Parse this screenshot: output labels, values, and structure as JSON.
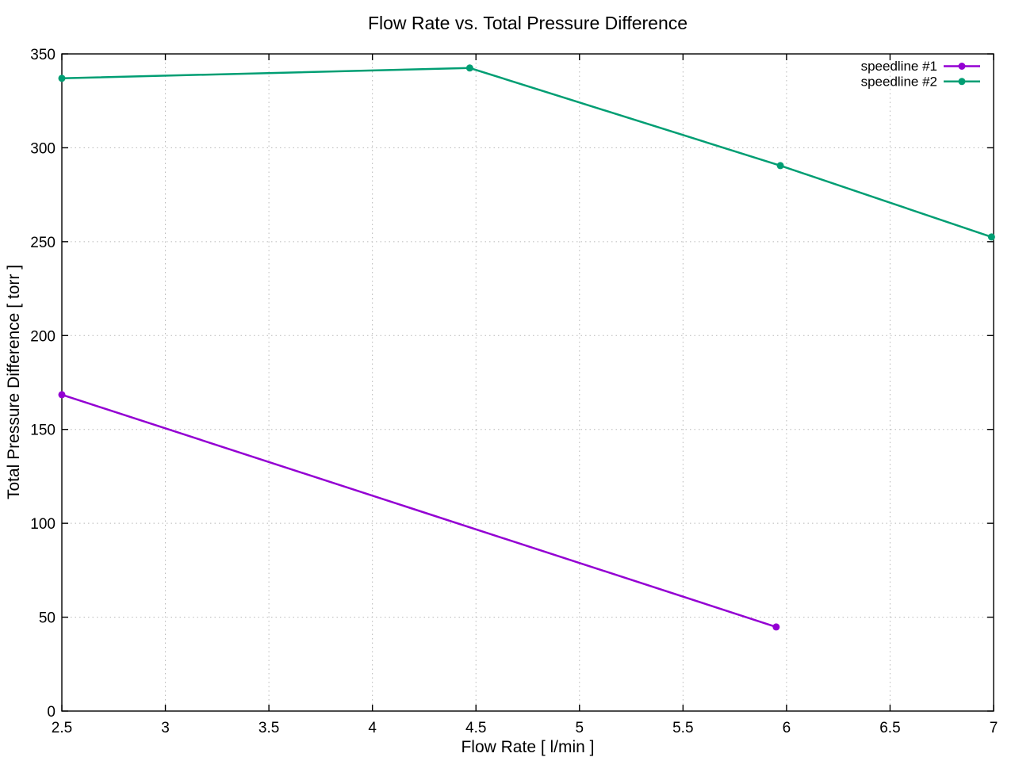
{
  "chart_data": {
    "type": "line",
    "title": "Flow Rate vs. Total Pressure Difference",
    "xlabel": "Flow Rate [ l/min ]",
    "ylabel": "Total Pressure Difference [ torr ]",
    "xlim": [
      2.5,
      7
    ],
    "ylim": [
      0,
      350
    ],
    "xticks": [
      2.5,
      3,
      3.5,
      4,
      4.5,
      5,
      5.5,
      6,
      6.5,
      7
    ],
    "xtick_labels": [
      "2.5",
      "3",
      "3.5",
      "4",
      "4.5",
      "5",
      "5.5",
      "6",
      "6.5",
      "7"
    ],
    "yticks": [
      0,
      50,
      100,
      150,
      200,
      250,
      300,
      350
    ],
    "ytick_labels": [
      "0",
      "50",
      "100",
      "150",
      "200",
      "250",
      "300",
      "350"
    ],
    "grid": true,
    "grid_color": "#b8b8b8",
    "axis_color": "#000000",
    "background_color": "#ffffff",
    "legend_position": "top-right-inside",
    "series": [
      {
        "name": "speedline #1",
        "color": "#9400d3",
        "marker": "circle",
        "points": [
          [
            2.5,
            168.5
          ],
          [
            5.95,
            44.8
          ]
        ]
      },
      {
        "name": "speedline #2",
        "color": "#009e73",
        "marker": "circle",
        "points": [
          [
            2.5,
            337.0
          ],
          [
            4.47,
            342.5
          ],
          [
            5.97,
            290.5
          ],
          [
            6.99,
            252.5
          ]
        ]
      }
    ]
  }
}
